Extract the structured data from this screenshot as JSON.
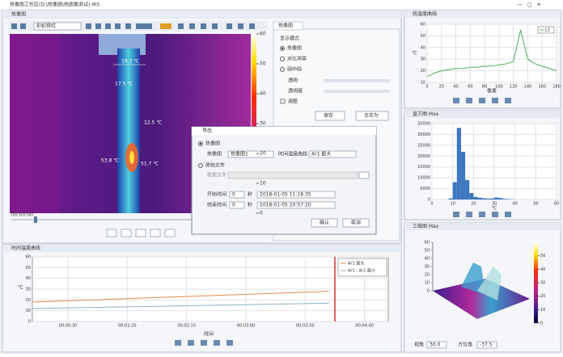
{
  "app": {
    "title": "热像图工作区(D:\\热像图\\热图像测试).IRS"
  },
  "viewer": {
    "title": "热像图",
    "palette": "彩虹铁红",
    "time": "00:00:00",
    "spots": [
      "19.3 ℃",
      "17.5 ℃",
      "12.5 ℃",
      "53.8 ℃",
      "51.7 ℃"
    ],
    "colorbar": {
      "lim": [
        0,
        60
      ],
      "ticks": [
        60,
        50,
        40,
        30,
        20,
        10,
        0
      ]
    }
  },
  "panel": {
    "tab": "热像图",
    "group": "显示模式",
    "options": [
      "热像图",
      "对比关联",
      "画中画"
    ],
    "fields": [
      "透明",
      "透明度"
    ],
    "check": "调整",
    "buttons": [
      "保存",
      "另存为"
    ]
  },
  "dialog": {
    "title": "导出",
    "radio1": "热像图",
    "source_label": "热像图",
    "source": "热像图1",
    "curve_label": "时间温度曲线",
    "curve": "Ar1 最大",
    "radio2": "原始文件",
    "file_label": "数据文件",
    "start_label": "开始时间",
    "end_label": "结束时间",
    "offset": "0",
    "unit": "秒",
    "start": "2018-01-05 11:18:35",
    "end": "2018-01-05 20:57:20",
    "ok": "确认",
    "cancel": "取消"
  },
  "trend": {
    "type": "line",
    "title": "时间温度曲线",
    "ylabel": "℃",
    "xlabel": "时间",
    "xlim": [
      0,
      300
    ],
    "ylim": [
      0,
      60
    ],
    "yticks": [
      0,
      10,
      20,
      30,
      40,
      50,
      60
    ],
    "xticks": [
      {
        "value": 30,
        "label": "00:00:30"
      },
      {
        "value": 80,
        "label": "00:01:20"
      },
      {
        "value": 130,
        "label": "00:02:10"
      },
      {
        "value": 180,
        "label": "00:03:00"
      },
      {
        "value": 230,
        "label": "00:03:50"
      },
      {
        "value": 280,
        "label": "00:04:40"
      }
    ],
    "cursor": 255,
    "x": [
      0,
      25,
      50,
      75,
      100,
      125,
      150,
      175,
      200,
      225,
      250
    ],
    "series": [
      {
        "name": "Ar1 最大",
        "color": "#e8894a",
        "values": [
          18,
          19,
          20,
          21,
          22,
          23,
          24,
          25,
          26,
          27,
          28
        ]
      },
      {
        "name": "Ar1 - Ar2 最小",
        "color": "#8fb0c4",
        "values": [
          12,
          12.5,
          13,
          13.5,
          14,
          14.5,
          15,
          15.5,
          16,
          16.5,
          17
        ]
      }
    ]
  },
  "profile": {
    "type": "line",
    "title": "线温度曲线",
    "ylabel": "℃",
    "xlabel": "像素",
    "xlim": [
      0,
      180
    ],
    "ylim": [
      10,
      60
    ],
    "yticks": [
      10,
      20,
      30,
      40,
      50,
      60
    ],
    "xticks": [
      0,
      20,
      40,
      60,
      80,
      100,
      120,
      140,
      160,
      180
    ],
    "x": [
      0,
      10,
      20,
      30,
      40,
      50,
      60,
      70,
      80,
      90,
      100,
      110,
      120,
      130,
      140,
      150,
      160,
      170,
      180
    ],
    "series": [
      {
        "name": "L1",
        "color": "#4caf50",
        "values": [
          15,
          18,
          20,
          21,
          22,
          22,
          23,
          23,
          24,
          24,
          25,
          26,
          28,
          55,
          30,
          26,
          24,
          22,
          20
        ]
      }
    ]
  },
  "histogram": {
    "type": "histogram",
    "title": "直方图 Max",
    "xlabel": "℃",
    "color": "#3c78c0",
    "xlim": [
      0,
      60
    ],
    "ylim": [
      0,
      35000
    ],
    "yticks": [
      0,
      5000,
      10000,
      15000,
      20000,
      25000,
      30000,
      35000
    ],
    "xticks": [
      0,
      10,
      20,
      30,
      40,
      50,
      60
    ],
    "bins": [
      0,
      2,
      4,
      6,
      8,
      10,
      12,
      14,
      16,
      18,
      20,
      22,
      24,
      26,
      28,
      30,
      32,
      34,
      36,
      38,
      40,
      42,
      44,
      46,
      48,
      50,
      52,
      54,
      56,
      58,
      60
    ],
    "counts": [
      0,
      0,
      0,
      0,
      500,
      8000,
      33000,
      22000,
      9000,
      3000,
      1200,
      800,
      600,
      400,
      500,
      900,
      700,
      300,
      200,
      100,
      0,
      0,
      0,
      0,
      0,
      0,
      0,
      0,
      0,
      0
    ]
  },
  "surface": {
    "title": "三维图 Max",
    "zlim": [
      0,
      60
    ],
    "zticks": [
      0,
      10,
      20,
      30,
      40,
      50,
      60
    ],
    "colorbar_ticks": [
      50,
      40,
      30,
      20,
      10,
      0
    ],
    "elevation_label": "视角",
    "elevation": "30.0",
    "azimuth_label": "方位角",
    "azimuth": "-37.5"
  }
}
